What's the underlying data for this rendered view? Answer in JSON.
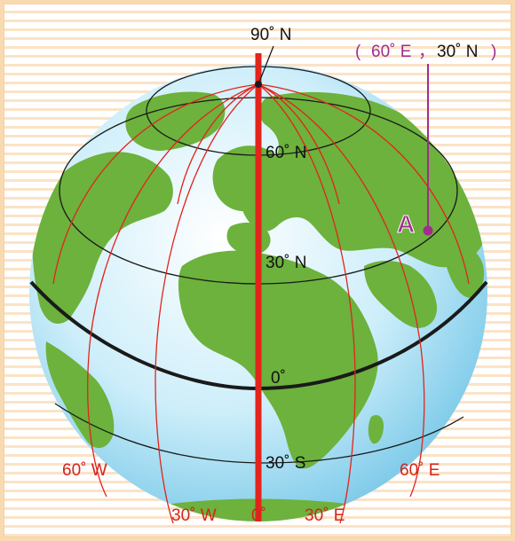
{
  "colors": {
    "background_stripe": "#fbe3c6",
    "ocean": "#bfe6f5",
    "land": "#6cb23c",
    "meridian": "#e3241b",
    "prime_meridian": "#e3241b",
    "equator": "#1a1a1a",
    "parallel": "#1a1a1a",
    "point": "#a12d8f",
    "label_red": "#d6231d",
    "label_black": "#111111"
  },
  "labels": {
    "north_pole": "90˚ N",
    "lat_60n": "60˚ N",
    "lat_30n": "30˚ N",
    "equator": "0˚",
    "lat_30s": "30˚ S",
    "lon_60w": "60˚ W",
    "lon_30w": "30˚ W",
    "lon_0": "0˚",
    "lon_30e": "30˚ E",
    "lon_60e": "60˚ E",
    "point_name": "A",
    "point_coords_open": "(",
    "point_coords_lon": "60˚ E",
    "point_coords_sep": "，",
    "point_coords_lat": "30˚ N",
    "point_coords_close": ")"
  },
  "point_a": {
    "longitude": "60˚ E",
    "latitude": "30˚ N"
  }
}
